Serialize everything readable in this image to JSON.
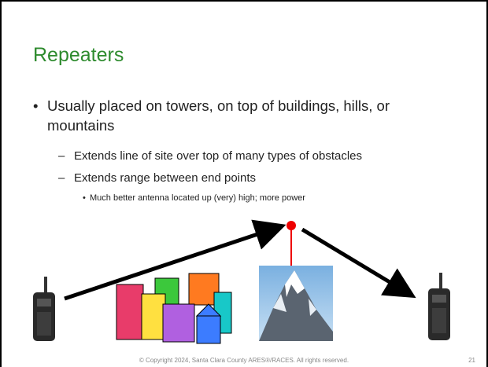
{
  "slide": {
    "title": "Repeaters",
    "bullets": [
      {
        "text": "Usually placed on towers, on top of buildings, hills, or mountains",
        "children": [
          {
            "text": "Extends line of site over top of many types of obstacles"
          },
          {
            "text": "Extends range between end points",
            "children": [
              {
                "text": "Much better antenna located up (very) high; more power"
              }
            ]
          }
        ]
      }
    ]
  },
  "footer": {
    "text": "© Copyright 2024, Santa Clara County ARES®/RACES. All rights reserved.",
    "page_number": "21"
  }
}
